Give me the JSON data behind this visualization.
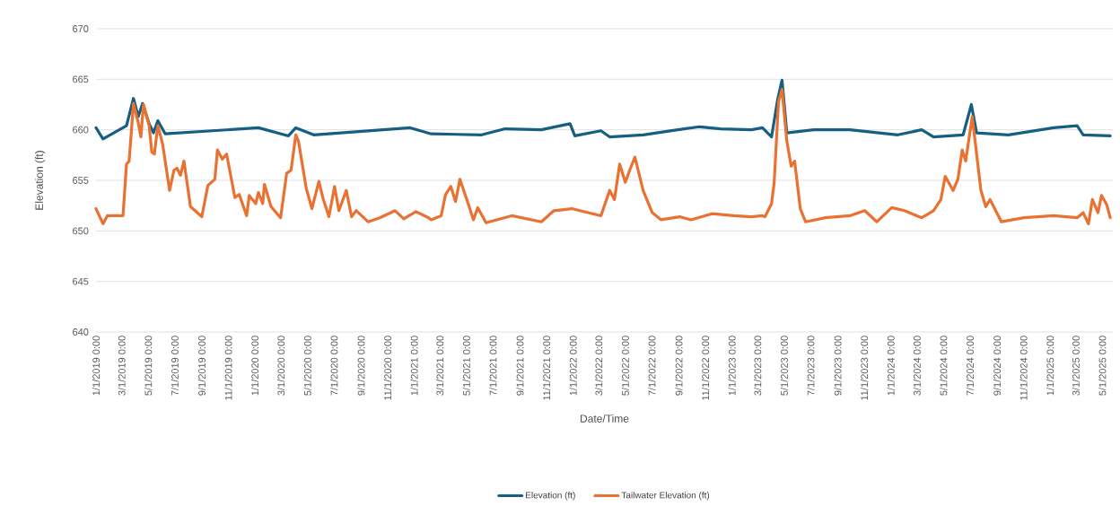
{
  "chart_data": {
    "type": "line",
    "xlabel": "Date/Time",
    "ylabel": "Elevation (ft)",
    "grid": "y",
    "legend": "bottom",
    "xlim": [
      "2019-01-01",
      "2025-05-25"
    ],
    "ylim": [
      640,
      670
    ],
    "yticks": [
      640,
      645,
      650,
      655,
      660,
      665,
      670
    ],
    "xticks": [
      {
        "value": "2019-01-01",
        "label": "1/1/2019 0:00"
      },
      {
        "value": "2019-03-01",
        "label": "3/1/2019 0:00"
      },
      {
        "value": "2019-05-01",
        "label": "5/1/2019 0:00"
      },
      {
        "value": "2019-07-01",
        "label": "7/1/2019 0:00"
      },
      {
        "value": "2019-09-01",
        "label": "9/1/2019 0:00"
      },
      {
        "value": "2019-11-01",
        "label": "11/1/2019 0:00"
      },
      {
        "value": "2020-01-01",
        "label": "1/1/2020 0:00"
      },
      {
        "value": "2020-03-01",
        "label": "3/1/2020 0:00"
      },
      {
        "value": "2020-05-01",
        "label": "5/1/2020 0:00"
      },
      {
        "value": "2020-07-01",
        "label": "7/1/2020 0:00"
      },
      {
        "value": "2020-09-01",
        "label": "9/1/2020 0:00"
      },
      {
        "value": "2020-11-01",
        "label": "11/1/2020 0:00"
      },
      {
        "value": "2021-01-01",
        "label": "1/1/2021 0:00"
      },
      {
        "value": "2021-03-01",
        "label": "3/1/2021 0:00"
      },
      {
        "value": "2021-05-01",
        "label": "5/1/2021 0:00"
      },
      {
        "value": "2021-07-01",
        "label": "7/1/2021 0:00"
      },
      {
        "value": "2021-09-01",
        "label": "9/1/2021 0:00"
      },
      {
        "value": "2021-11-01",
        "label": "11/1/2021 0:00"
      },
      {
        "value": "2022-01-01",
        "label": "1/1/2022 0:00"
      },
      {
        "value": "2022-03-01",
        "label": "3/1/2022 0:00"
      },
      {
        "value": "2022-05-01",
        "label": "5/1/2022 0:00"
      },
      {
        "value": "2022-07-01",
        "label": "7/1/2022 0:00"
      },
      {
        "value": "2022-09-01",
        "label": "9/1/2022 0:00"
      },
      {
        "value": "2022-11-01",
        "label": "11/1/2022 0:00"
      },
      {
        "value": "2023-01-01",
        "label": "1/1/2023 0:00"
      },
      {
        "value": "2023-03-01",
        "label": "3/1/2023 0:00"
      },
      {
        "value": "2023-05-01",
        "label": "5/1/2023 0:00"
      },
      {
        "value": "2023-07-01",
        "label": "7/1/2023 0:00"
      },
      {
        "value": "2023-09-01",
        "label": "9/1/2023 0:00"
      },
      {
        "value": "2023-11-01",
        "label": "11/1/2023 0:00"
      },
      {
        "value": "2024-01-01",
        "label": "1/1/2024 0:00"
      },
      {
        "value": "2024-03-01",
        "label": "3/1/2024 0:00"
      },
      {
        "value": "2024-05-01",
        "label": "5/1/2024 0:00"
      },
      {
        "value": "2024-07-01",
        "label": "7/1/2024 0:00"
      },
      {
        "value": "2024-09-01",
        "label": "9/1/2024 0:00"
      },
      {
        "value": "2024-11-01",
        "label": "11/1/2024 0:00"
      },
      {
        "value": "2025-01-01",
        "label": "1/1/2025 0:00"
      },
      {
        "value": "2025-03-01",
        "label": "3/1/2025 0:00"
      },
      {
        "value": "2025-05-01",
        "label": "5/1/2025 0:00"
      }
    ],
    "series": [
      {
        "name": "Elevation (ft)",
        "color": "#156082",
        "x": [
          "2019-01-01",
          "2019-01-17",
          "2019-03-12",
          "2019-03-28",
          "2019-04-08",
          "2019-04-18",
          "2019-05-03",
          "2019-05-13",
          "2019-05-23",
          "2019-06-09",
          "2020-01-09",
          "2020-03-18",
          "2020-04-04",
          "2020-05-15",
          "2020-12-23",
          "2021-02-09",
          "2021-06-05",
          "2021-07-29",
          "2021-10-20",
          "2021-12-25",
          "2022-01-05",
          "2022-03-06",
          "2022-03-26",
          "2022-06-11",
          "2022-08-12",
          "2022-10-19",
          "2022-12-06",
          "2023-02-15",
          "2023-03-12",
          "2023-04-02",
          "2023-04-16",
          "2023-04-26",
          "2023-05-07",
          "2023-07-08",
          "2023-09-29",
          "2024-01-17",
          "2024-03-12",
          "2024-04-08",
          "2024-06-15",
          "2024-07-04",
          "2024-07-16",
          "2024-09-27",
          "2025-01-09",
          "2025-03-04",
          "2025-03-18",
          "2025-05-19"
        ],
        "values": [
          660.2,
          659.1,
          660.4,
          663.1,
          661.3,
          662.6,
          660.6,
          659.7,
          660.9,
          659.6,
          660.2,
          659.4,
          660.2,
          659.5,
          660.2,
          659.6,
          659.5,
          660.1,
          660.0,
          660.6,
          659.4,
          659.9,
          659.3,
          659.5,
          659.9,
          660.3,
          660.1,
          660.0,
          660.2,
          659.3,
          663.0,
          664.9,
          659.7,
          660.0,
          660.0,
          659.5,
          660.0,
          659.3,
          659.5,
          662.5,
          659.7,
          659.5,
          660.2,
          660.4,
          659.5,
          659.4
        ]
      },
      {
        "name": "Tailwater Elevation (ft)",
        "color": "#e97132",
        "x": [
          "2019-01-01",
          "2019-01-17",
          "2019-01-27",
          "2019-03-04",
          "2019-03-12",
          "2019-03-18",
          "2019-03-28",
          "2019-04-08",
          "2019-04-14",
          "2019-04-20",
          "2019-05-03",
          "2019-05-09",
          "2019-05-15",
          "2019-05-23",
          "2019-06-03",
          "2019-06-19",
          "2019-06-29",
          "2019-07-06",
          "2019-07-14",
          "2019-07-22",
          "2019-08-06",
          "2019-09-01",
          "2019-09-15",
          "2019-10-01",
          "2019-10-07",
          "2019-10-18",
          "2019-10-28",
          "2019-11-16",
          "2019-11-26",
          "2019-12-13",
          "2019-12-19",
          "2020-01-03",
          "2020-01-09",
          "2020-01-19",
          "2020-01-23",
          "2020-02-07",
          "2020-02-29",
          "2020-03-14",
          "2020-03-24",
          "2020-04-04",
          "2020-04-10",
          "2020-04-28",
          "2020-05-11",
          "2020-05-27",
          "2020-06-05",
          "2020-06-19",
          "2020-07-02",
          "2020-07-12",
          "2020-07-29",
          "2020-08-10",
          "2020-08-21",
          "2020-09-17",
          "2020-10-14",
          "2020-11-18",
          "2020-12-08",
          "2021-01-05",
          "2021-02-03",
          "2021-02-09",
          "2021-03-04",
          "2021-03-14",
          "2021-03-26",
          "2021-04-06",
          "2021-04-16",
          "2021-05-05",
          "2021-05-17",
          "2021-05-27",
          "2021-06-15",
          "2021-08-13",
          "2021-10-20",
          "2021-11-18",
          "2021-12-29",
          "2022-03-06",
          "2022-03-26",
          "2022-04-06",
          "2022-04-18",
          "2022-05-01",
          "2022-05-11",
          "2022-05-23",
          "2022-06-11",
          "2022-07-02",
          "2022-07-22",
          "2022-09-03",
          "2022-09-29",
          "2022-11-16",
          "2023-01-05",
          "2023-02-15",
          "2023-03-12",
          "2023-03-18",
          "2023-04-02",
          "2023-04-08",
          "2023-04-18",
          "2023-04-26",
          "2023-05-07",
          "2023-05-17",
          "2023-05-25",
          "2023-06-07",
          "2023-06-19",
          "2023-08-04",
          "2023-09-29",
          "2023-11-02",
          "2023-11-30",
          "2024-01-03",
          "2024-02-01",
          "2024-03-12",
          "2024-04-08",
          "2024-04-25",
          "2024-05-05",
          "2024-05-23",
          "2024-06-03",
          "2024-06-13",
          "2024-06-21",
          "2024-07-06",
          "2024-07-26",
          "2024-08-06",
          "2024-08-16",
          "2024-09-11",
          "2024-11-02",
          "2025-01-09",
          "2025-03-04",
          "2025-03-18",
          "2025-03-30",
          "2025-04-08",
          "2025-04-21",
          "2025-04-29",
          "2025-05-11",
          "2025-05-19"
        ],
        "values": [
          652.2,
          650.7,
          651.5,
          651.5,
          656.6,
          656.9,
          662.6,
          660.7,
          659.3,
          662.5,
          660.4,
          657.8,
          657.6,
          660.4,
          658.6,
          654.0,
          656.0,
          656.2,
          655.5,
          656.9,
          652.4,
          651.4,
          654.5,
          655.1,
          658.0,
          657.1,
          657.6,
          653.3,
          653.6,
          651.5,
          653.5,
          652.7,
          653.8,
          652.7,
          654.6,
          652.4,
          651.3,
          655.7,
          656.0,
          659.5,
          658.9,
          654.2,
          652.2,
          654.9,
          653.3,
          651.4,
          654.4,
          652.0,
          654.0,
          651.4,
          652.0,
          650.9,
          651.3,
          652.0,
          651.2,
          651.9,
          651.3,
          651.1,
          651.5,
          653.6,
          654.4,
          652.9,
          655.1,
          652.7,
          651.1,
          652.3,
          650.8,
          651.5,
          650.9,
          652.0,
          652.2,
          651.5,
          654.0,
          653.1,
          656.6,
          654.8,
          656.0,
          657.3,
          654.0,
          651.8,
          651.1,
          651.4,
          651.1,
          651.7,
          651.5,
          651.4,
          651.5,
          651.4,
          652.7,
          654.8,
          662.8,
          664.0,
          658.9,
          656.4,
          656.9,
          652.2,
          650.9,
          651.3,
          651.5,
          652.0,
          650.9,
          652.3,
          652.0,
          651.3,
          652.0,
          653.1,
          655.4,
          654.0,
          655.1,
          658.0,
          656.9,
          661.3,
          654.0,
          652.4,
          653.1,
          650.9,
          651.3,
          651.5,
          651.3,
          651.8,
          650.7,
          653.1,
          651.8,
          653.5,
          652.6,
          651.3
        ]
      }
    ]
  }
}
